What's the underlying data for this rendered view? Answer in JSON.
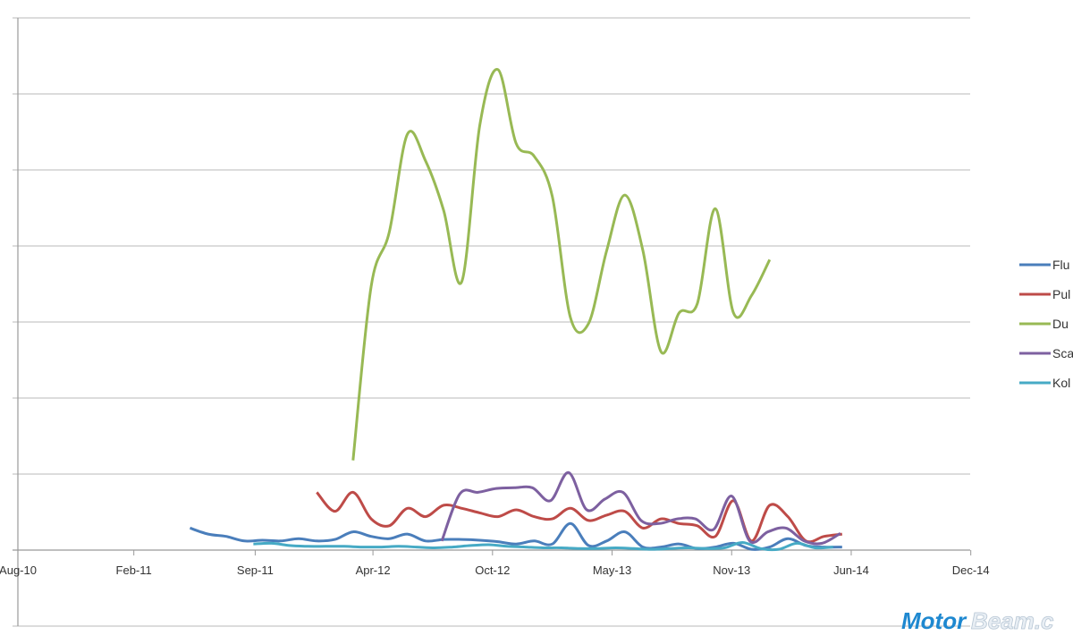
{
  "chart_data": {
    "type": "line",
    "title": "",
    "xlabel": "",
    "ylabel": "",
    "x_unit": "months since Aug-10",
    "xlim": [
      0,
      52
    ],
    "ylim": [
      -1,
      7
    ],
    "y_gridlines": [
      -1,
      0,
      1,
      2,
      3,
      4,
      5,
      6,
      7
    ],
    "grid": true,
    "x_ticks": [
      {
        "label": "Aug-10",
        "month": 0
      },
      {
        "label": "Feb-11",
        "month": 6.4
      },
      {
        "label": "Sep-11",
        "month": 13.1
      },
      {
        "label": "Apr-12",
        "month": 19.6
      },
      {
        "label": "Oct-12",
        "month": 26.2
      },
      {
        "label": "May-13",
        "month": 32.8
      },
      {
        "label": "Nov-13",
        "month": 39.4
      },
      {
        "label": "Jun-14",
        "month": 46
      },
      {
        "label": "Dec-14",
        "month": 52.6
      }
    ],
    "legend_position": "right",
    "series": [
      {
        "name": "Flu",
        "color": "#4a7ebb",
        "start": 9.5,
        "values": [
          0.29,
          0.21,
          0.18,
          0.12,
          0.13,
          0.12,
          0.15,
          0.12,
          0.14,
          0.24,
          0.18,
          0.15,
          0.21,
          0.12,
          0.14,
          0.14,
          0.13,
          0.11,
          0.08,
          0.12,
          0.08,
          0.35,
          0.06,
          0.12,
          0.24,
          0.04,
          0.04,
          0.08,
          0.02,
          0.04,
          0.09,
          0.01,
          0.04,
          0.15,
          0.06,
          0.04,
          0.04
        ]
      },
      {
        "name": "Pul",
        "color": "#be4b48",
        "start": 16.5,
        "values": [
          0.76,
          0.51,
          0.76,
          0.41,
          0.32,
          0.55,
          0.44,
          0.59,
          0.55,
          0.49,
          0.44,
          0.53,
          0.44,
          0.41,
          0.55,
          0.39,
          0.46,
          0.51,
          0.29,
          0.41,
          0.35,
          0.32,
          0.18,
          0.65,
          0.12,
          0.59,
          0.44,
          0.12,
          0.18,
          0.21
        ]
      },
      {
        "name": "Du",
        "color": "#98b954",
        "start": 18.5,
        "values": [
          1.18,
          3.47,
          4.18,
          5.47,
          5.12,
          4.47,
          3.53,
          5.59,
          6.32,
          5.35,
          5.18,
          4.65,
          3.06,
          2.98,
          3.94,
          4.67,
          3.94,
          2.61,
          3.12,
          3.24,
          4.49,
          3.12,
          3.35,
          3.82
        ]
      },
      {
        "name": "Sca",
        "color": "#7d60a0",
        "start": 23.4,
        "values": [
          0.12,
          0.74,
          0.76,
          0.81,
          0.82,
          0.82,
          0.65,
          1.02,
          0.53,
          0.67,
          0.76,
          0.39,
          0.35,
          0.41,
          0.41,
          0.27,
          0.71,
          0.12,
          0.24,
          0.29,
          0.12,
          0.09,
          0.22
        ]
      },
      {
        "name": "Kol",
        "color": "#46aac5",
        "start": 13,
        "values": [
          0.08,
          0.09,
          0.06,
          0.05,
          0.05,
          0.05,
          0.04,
          0.04,
          0.05,
          0.04,
          0.03,
          0.04,
          0.06,
          0.07,
          0.05,
          0.04,
          0.03,
          0.03,
          0.02,
          0.02,
          0.03,
          0.02,
          0.01,
          0.02,
          0.03,
          0.02,
          0.03,
          0.1,
          0.02,
          0.01,
          0.09,
          0.03,
          0.04
        ]
      }
    ]
  },
  "watermark": {
    "text_main": "Motor",
    "text_accent": "Beam.c"
  }
}
